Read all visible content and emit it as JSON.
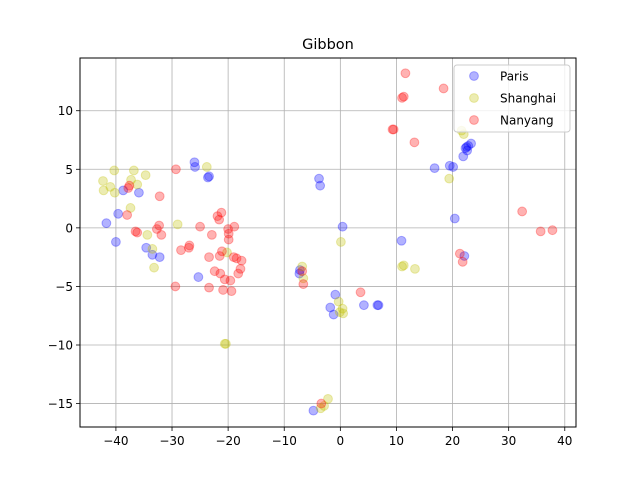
{
  "chart_data": {
    "type": "scatter",
    "title": "Gibbon",
    "xlabel": "",
    "ylabel": "",
    "xlim": [
      -46.4,
      42.0
    ],
    "ylim": [
      -17.0,
      14.5
    ],
    "xticks": [
      -40,
      -30,
      -20,
      -10,
      0,
      10,
      20,
      30,
      40
    ],
    "yticks": [
      -15,
      -10,
      -5,
      0,
      5,
      10
    ],
    "grid": true,
    "legend_position": "top-right",
    "series": [
      {
        "name": "Paris",
        "color": "#0000ff",
        "points": [
          [
            -41.7,
            0.4
          ],
          [
            -40.0,
            -1.2
          ],
          [
            -39.6,
            1.2
          ],
          [
            -38.7,
            3.2
          ],
          [
            -35.9,
            3.0
          ],
          [
            -34.6,
            -1.7
          ],
          [
            -33.5,
            -2.3
          ],
          [
            -32.2,
            -2.5
          ],
          [
            -26.0,
            5.6
          ],
          [
            -25.9,
            5.2
          ],
          [
            -25.3,
            -4.2
          ],
          [
            -23.6,
            4.3
          ],
          [
            -23.4,
            4.4
          ],
          [
            -7.3,
            -3.9
          ],
          [
            -7.2,
            -3.6
          ],
          [
            -3.8,
            4.2
          ],
          [
            -3.6,
            3.6
          ],
          [
            -4.8,
            -15.6
          ],
          [
            -1.8,
            -6.8
          ],
          [
            -1.2,
            -7.4
          ],
          [
            -0.9,
            -5.7
          ],
          [
            0.4,
            0.1
          ],
          [
            4.2,
            -6.6
          ],
          [
            6.6,
            -6.6
          ],
          [
            6.8,
            -6.6
          ],
          [
            10.9,
            -1.1
          ],
          [
            16.8,
            5.1
          ],
          [
            19.5,
            5.3
          ],
          [
            20.1,
            5.2
          ],
          [
            20.4,
            0.8
          ],
          [
            21.9,
            6.1
          ],
          [
            22.1,
            -2.4
          ],
          [
            22.3,
            6.8
          ],
          [
            22.5,
            6.9
          ],
          [
            22.6,
            6.6
          ],
          [
            22.8,
            7.0
          ],
          [
            23.3,
            7.2
          ]
        ]
      },
      {
        "name": "Shanghai",
        "color": "#bfbf00",
        "points": [
          [
            -42.3,
            4.0
          ],
          [
            -42.2,
            3.2
          ],
          [
            -41.0,
            3.5
          ],
          [
            -40.3,
            4.9
          ],
          [
            -40.2,
            3.0
          ],
          [
            -37.4,
            1.7
          ],
          [
            -37.3,
            4.1
          ],
          [
            -36.8,
            4.9
          ],
          [
            -36.2,
            3.7
          ],
          [
            -34.7,
            4.5
          ],
          [
            -34.4,
            -0.6
          ],
          [
            -33.5,
            -1.8
          ],
          [
            -33.2,
            -3.4
          ],
          [
            -29.0,
            0.3
          ],
          [
            -23.8,
            5.2
          ],
          [
            -20.2,
            -2.1
          ],
          [
            -20.4,
            -9.9
          ],
          [
            -20.6,
            -9.9
          ],
          [
            -6.8,
            -3.3
          ],
          [
            -6.6,
            -4.3
          ],
          [
            -3.5,
            -15.4
          ],
          [
            -2.9,
            -15.2
          ],
          [
            -2.2,
            -14.6
          ],
          [
            -0.3,
            -6.3
          ],
          [
            -0.1,
            -7.2
          ],
          [
            0.1,
            -1.2
          ],
          [
            0.4,
            -6.9
          ],
          [
            0.5,
            -7.3
          ],
          [
            11.0,
            -3.3
          ],
          [
            11.3,
            -3.2
          ],
          [
            13.3,
            -3.5
          ],
          [
            19.4,
            4.2
          ],
          [
            21.6,
            8.3
          ],
          [
            22.0,
            8.0
          ]
        ]
      },
      {
        "name": "Nanyang",
        "color": "#ff0000",
        "points": [
          [
            -38.0,
            1.1
          ],
          [
            -37.8,
            3.4
          ],
          [
            -37.6,
            3.6
          ],
          [
            -36.5,
            -0.3
          ],
          [
            -36.2,
            -0.4
          ],
          [
            -32.7,
            -0.1
          ],
          [
            -32.3,
            0.2
          ],
          [
            -31.9,
            -0.6
          ],
          [
            -32.2,
            2.7
          ],
          [
            -29.4,
            -5.0
          ],
          [
            -29.3,
            5.0
          ],
          [
            -28.4,
            -1.9
          ],
          [
            -27.0,
            -1.7
          ],
          [
            -26.9,
            -1.5
          ],
          [
            -25.0,
            0.1
          ],
          [
            -23.4,
            -5.1
          ],
          [
            -22.9,
            -0.6
          ],
          [
            -23.4,
            -2.5
          ],
          [
            -22.4,
            -3.7
          ],
          [
            -21.9,
            1.0
          ],
          [
            -21.6,
            0.7
          ],
          [
            -21.5,
            -2.4
          ],
          [
            -21.4,
            -3.9
          ],
          [
            -21.2,
            1.3
          ],
          [
            -21.1,
            -2.0
          ],
          [
            -20.9,
            -5.3
          ],
          [
            -20.6,
            -4.4
          ],
          [
            -20.0,
            -0.1
          ],
          [
            -19.9,
            -0.5
          ],
          [
            -19.9,
            -1.0
          ],
          [
            -19.6,
            -4.5
          ],
          [
            -19.4,
            -5.4
          ],
          [
            -19.0,
            -2.5
          ],
          [
            -18.9,
            0.1
          ],
          [
            -18.5,
            -2.6
          ],
          [
            -18.2,
            -3.9
          ],
          [
            -17.8,
            -3.5
          ],
          [
            -17.6,
            -2.8
          ],
          [
            -6.8,
            -3.7
          ],
          [
            -6.6,
            -4.8
          ],
          [
            -3.4,
            -15.0
          ],
          [
            3.6,
            -5.5
          ],
          [
            9.3,
            8.4
          ],
          [
            9.5,
            8.4
          ],
          [
            11.0,
            11.1
          ],
          [
            11.3,
            11.2
          ],
          [
            11.6,
            13.2
          ],
          [
            13.2,
            7.3
          ],
          [
            18.4,
            11.9
          ],
          [
            21.3,
            -2.2
          ],
          [
            21.8,
            -2.9
          ],
          [
            32.4,
            1.4
          ],
          [
            35.7,
            -0.3
          ],
          [
            37.8,
            -0.2
          ]
        ]
      }
    ]
  }
}
